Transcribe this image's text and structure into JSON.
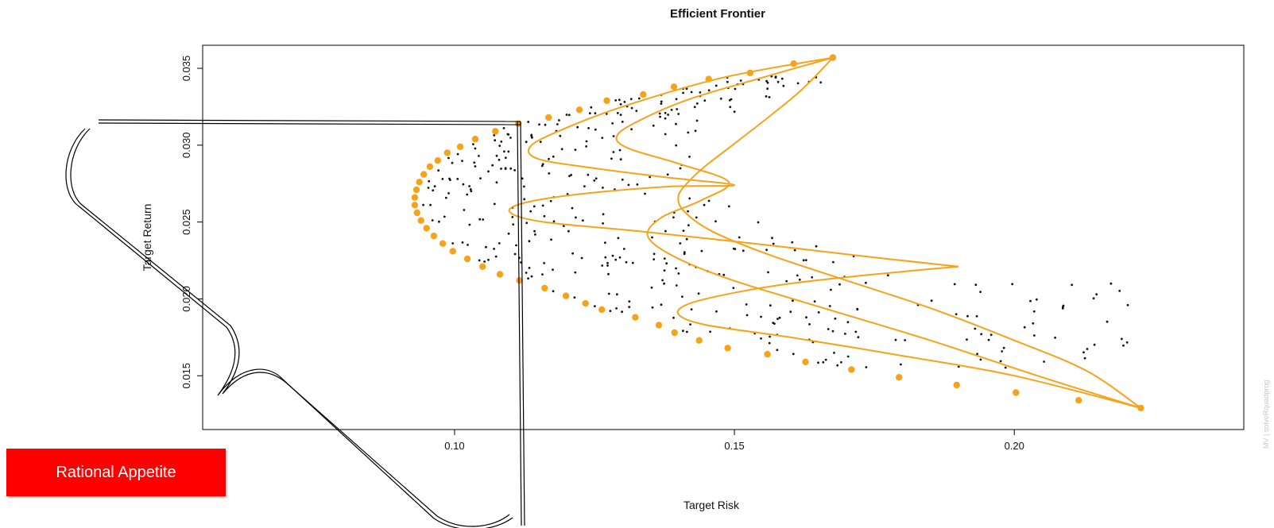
{
  "colors": {
    "frontier": "#f5a31a",
    "points": "#111111",
    "badge": "#ff0000",
    "annotation": "#000000"
  },
  "side_note": "MV | solveRquadprog",
  "badge": {
    "label": "Rational Appetite"
  },
  "chart_data": {
    "type": "scatter",
    "title": "Efficient Frontier",
    "xlabel": "Target Risk",
    "ylabel": "Target Return",
    "xlim": [
      0.055,
      0.241
    ],
    "ylim": [
      0.0115,
      0.0365
    ],
    "xticks": [
      0.1,
      0.15,
      0.2
    ],
    "xtick_labels": [
      "0.10",
      "0.15",
      "0.20"
    ],
    "yticks": [
      0.015,
      0.02,
      0.025,
      0.03,
      0.035
    ],
    "ytick_labels": [
      "0.015",
      "0.020",
      "0.025",
      "0.030",
      "0.035"
    ],
    "grid": false,
    "frontier_points": [
      [
        0.1676,
        0.0357
      ],
      [
        0.1606,
        0.0353
      ],
      [
        0.1528,
        0.0347
      ],
      [
        0.1454,
        0.0343
      ],
      [
        0.1392,
        0.0338
      ],
      [
        0.1337,
        0.0333
      ],
      [
        0.1272,
        0.0329
      ],
      [
        0.1223,
        0.0323
      ],
      [
        0.1168,
        0.0318
      ],
      [
        0.1114,
        0.0314
      ],
      [
        0.1073,
        0.0309
      ],
      [
        0.1037,
        0.0304
      ],
      [
        0.101,
        0.0299
      ],
      [
        0.0987,
        0.0295
      ],
      [
        0.097,
        0.029
      ],
      [
        0.0956,
        0.0286
      ],
      [
        0.0945,
        0.0281
      ],
      [
        0.0937,
        0.0276
      ],
      [
        0.0932,
        0.0271
      ],
      [
        0.0929,
        0.0266
      ],
      [
        0.0929,
        0.0261
      ],
      [
        0.0933,
        0.0256
      ],
      [
        0.094,
        0.0251
      ],
      [
        0.095,
        0.0246
      ],
      [
        0.0963,
        0.0241
      ],
      [
        0.0979,
        0.0236
      ],
      [
        0.0997,
        0.0231
      ],
      [
        0.1023,
        0.0226
      ],
      [
        0.105,
        0.0221
      ],
      [
        0.1081,
        0.0216
      ],
      [
        0.1116,
        0.0212
      ],
      [
        0.1161,
        0.0207
      ],
      [
        0.1199,
        0.0202
      ],
      [
        0.1234,
        0.0197
      ],
      [
        0.1263,
        0.0193
      ],
      [
        0.1323,
        0.0188
      ],
      [
        0.1365,
        0.0183
      ],
      [
        0.1393,
        0.0178
      ],
      [
        0.1437,
        0.0173
      ],
      [
        0.1488,
        0.0168
      ],
      [
        0.1559,
        0.0164
      ],
      [
        0.1627,
        0.0159
      ],
      [
        0.1709,
        0.0154
      ],
      [
        0.1794,
        0.0149
      ],
      [
        0.1897,
        0.0144
      ],
      [
        0.2003,
        0.0139
      ],
      [
        0.2115,
        0.0134
      ],
      [
        0.2226,
        0.0129
      ]
    ],
    "curves": [
      [
        [
          0.1676,
          0.0357
        ],
        [
          0.162,
          0.0336
        ],
        [
          0.156,
          0.0318
        ],
        [
          0.15,
          0.0301
        ],
        [
          0.145,
          0.0287
        ],
        [
          0.142,
          0.0277
        ],
        [
          0.14,
          0.0267
        ],
        [
          0.141,
          0.0257
        ],
        [
          0.146,
          0.0244
        ],
        [
          0.156,
          0.0229
        ],
        [
          0.17,
          0.0212
        ],
        [
          0.185,
          0.0194
        ],
        [
          0.2,
          0.0173
        ],
        [
          0.213,
          0.0153
        ],
        [
          0.2226,
          0.0129
        ]
      ],
      [
        [
          0.1676,
          0.0357
        ],
        [
          0.148,
          0.0344
        ],
        [
          0.13,
          0.0325
        ],
        [
          0.1185,
          0.0309
        ],
        [
          0.1135,
          0.0299
        ],
        [
          0.115,
          0.0291
        ],
        [
          0.125,
          0.0285
        ],
        [
          0.138,
          0.0279
        ],
        [
          0.15,
          0.0274
        ],
        [
          0.138,
          0.0273
        ],
        [
          0.122,
          0.0268
        ],
        [
          0.112,
          0.0262
        ],
        [
          0.11,
          0.0256
        ],
        [
          0.116,
          0.025
        ],
        [
          0.133,
          0.0244
        ],
        [
          0.156,
          0.0235
        ],
        [
          0.175,
          0.0227
        ],
        [
          0.19,
          0.0221
        ]
      ],
      [
        [
          0.19,
          0.0221
        ],
        [
          0.175,
          0.0216
        ],
        [
          0.16,
          0.021
        ],
        [
          0.15,
          0.0204
        ],
        [
          0.142,
          0.0197
        ],
        [
          0.14,
          0.019
        ],
        [
          0.145,
          0.0183
        ],
        [
          0.16,
          0.0175
        ],
        [
          0.18,
          0.0163
        ],
        [
          0.2,
          0.015
        ],
        [
          0.2226,
          0.0129
        ]
      ],
      [
        [
          0.1676,
          0.0357
        ],
        [
          0.155,
          0.0344
        ],
        [
          0.142,
          0.033
        ],
        [
          0.133,
          0.0316
        ],
        [
          0.129,
          0.0306
        ],
        [
          0.131,
          0.0298
        ],
        [
          0.14,
          0.0288
        ],
        [
          0.149,
          0.0276
        ],
        [
          0.144,
          0.0264
        ],
        [
          0.137,
          0.0253
        ],
        [
          0.1345,
          0.0241
        ],
        [
          0.139,
          0.0228
        ],
        [
          0.149,
          0.0213
        ],
        [
          0.165,
          0.0195
        ],
        [
          0.185,
          0.0173
        ],
        [
          0.205,
          0.0149
        ],
        [
          0.2226,
          0.0129
        ]
      ]
    ],
    "cloud": {
      "count": 420,
      "return_range": [
        0.0155,
        0.0345
      ]
    },
    "annotation": "hand-drawn bracket and vertical marker near Target Risk 0.112"
  }
}
